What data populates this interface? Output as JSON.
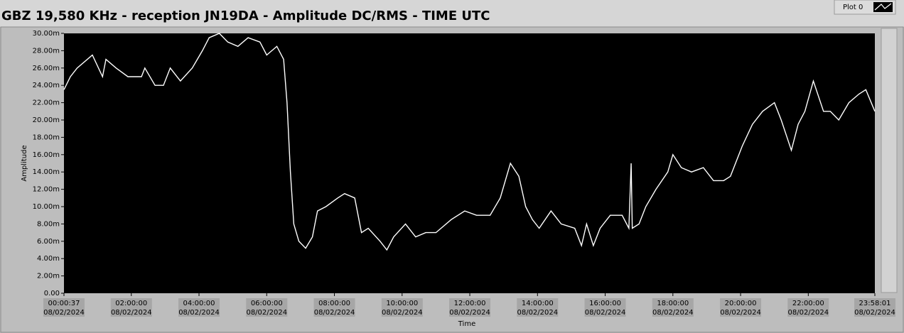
{
  "chart_data": {
    "type": "line",
    "title": "GBZ  19,580 KHz - reception JN19DA -  Amplitude DC/RMS   - TIME UTC",
    "x_label": "Time",
    "y_label": "Amplitude",
    "legend": "top-right",
    "background": "#000000",
    "x": [
      "08/02/2024 00:00:37",
      "08/02/2024 00:12:00",
      "08/02/2024 00:24:00",
      "08/02/2024 00:51:00",
      "08/02/2024 01:09:00",
      "08/02/2024 01:15:00",
      "08/02/2024 01:33:00",
      "08/02/2024 01:54:00",
      "08/02/2024 02:18:00",
      "08/02/2024 02:24:00",
      "08/02/2024 02:42:00",
      "08/02/2024 02:57:00",
      "08/02/2024 03:09:00",
      "08/02/2024 03:27:00",
      "08/02/2024 03:48:00",
      "08/02/2024 04:06:00",
      "08/02/2024 04:18:00",
      "08/02/2024 04:36:00",
      "08/02/2024 04:51:00",
      "08/02/2024 05:09:00",
      "08/02/2024 05:27:00",
      "08/02/2024 05:48:00",
      "08/02/2024 06:00:00",
      "08/02/2024 06:18:00",
      "08/02/2024 06:30:00",
      "08/02/2024 06:36:00",
      "08/02/2024 06:42:00",
      "08/02/2024 06:48:00",
      "08/02/2024 06:57:00",
      "08/02/2024 07:09:00",
      "08/02/2024 07:21:00",
      "08/02/2024 07:30:00",
      "08/02/2024 07:45:00",
      "08/02/2024 08:06:00",
      "08/02/2024 08:18:00",
      "08/02/2024 08:36:00",
      "08/02/2024 08:48:00",
      "08/02/2024 09:00:00",
      "08/02/2024 09:21:00",
      "08/02/2024 09:33:00",
      "08/02/2024 09:45:00",
      "08/02/2024 10:06:00",
      "08/02/2024 10:24:00",
      "08/02/2024 10:42:00",
      "08/02/2024 11:00:00",
      "08/02/2024 11:27:00",
      "08/02/2024 11:51:00",
      "08/02/2024 12:12:00",
      "08/02/2024 12:36:00",
      "08/02/2024 12:54:00",
      "08/02/2024 13:12:00",
      "08/02/2024 13:27:00",
      "08/02/2024 13:39:00",
      "08/02/2024 13:51:00",
      "08/02/2024 14:03:00",
      "08/02/2024 14:24:00",
      "08/02/2024 14:42:00",
      "08/02/2024 15:06:00",
      "08/02/2024 15:18:00",
      "08/02/2024 15:27:00",
      "08/02/2024 15:39:00",
      "08/02/2024 15:51:00",
      "08/02/2024 16:09:00",
      "08/02/2024 16:30:00",
      "08/02/2024 16:42:00",
      "08/02/2024 16:46:00",
      "08/02/2024 16:48:00",
      "08/02/2024 17:00:00",
      "08/02/2024 17:12:00",
      "08/02/2024 17:30:00",
      "08/02/2024 17:51:00",
      "08/02/2024 18:00:00",
      "08/02/2024 18:15:00",
      "08/02/2024 18:33:00",
      "08/02/2024 18:54:00",
      "08/02/2024 19:12:00",
      "08/02/2024 19:30:00",
      "08/02/2024 19:42:00",
      "08/02/2024 20:03:00",
      "08/02/2024 20:21:00",
      "08/02/2024 20:39:00",
      "08/02/2024 21:00:00",
      "08/02/2024 21:12:00",
      "08/02/2024 21:30:00",
      "08/02/2024 21:42:00",
      "08/02/2024 21:54:00",
      "08/02/2024 22:09:00",
      "08/02/2024 22:27:00",
      "08/02/2024 22:39:00",
      "08/02/2024 22:54:00",
      "08/02/2024 23:12:00",
      "08/02/2024 23:30:00",
      "08/02/2024 23:42:00",
      "08/02/2024 23:58:01"
    ],
    "series": [
      {
        "name": "Plot 0",
        "color": "#ffffff",
        "values": [
          23.5,
          25,
          26,
          27.5,
          25,
          27,
          26,
          25,
          25,
          26,
          24,
          24,
          26,
          24.5,
          26,
          28,
          29.5,
          30,
          29,
          28.5,
          29.5,
          29,
          27.5,
          28.5,
          27,
          22,
          14,
          8,
          6,
          5.2,
          6.5,
          9.5,
          10,
          11,
          11.5,
          11,
          7,
          7.5,
          6,
          5,
          6.5,
          8,
          6.5,
          7,
          7,
          8.5,
          9.5,
          9,
          9,
          11,
          15,
          13.5,
          10,
          8.5,
          7.5,
          9.5,
          8,
          7.5,
          5.5,
          8,
          5.5,
          7.5,
          9,
          9,
          7.5,
          15,
          7.5,
          8,
          10,
          12,
          14,
          16,
          14.5,
          14,
          14.5,
          13,
          13,
          13.5,
          17,
          19.5,
          21,
          22,
          20,
          16.5,
          19.5,
          21,
          24.5,
          21,
          21,
          20,
          22,
          23,
          23.5,
          21
        ]
      }
    ],
    "xlim": [
      "08/02/2024 00:00:37",
      "08/02/2024 23:58:01"
    ],
    "xticks": [
      {
        "value": "08/02/2024 00:00:37",
        "label": [
          "00:00:37",
          "08/02/2024"
        ]
      },
      {
        "value": "08/02/2024 02:00:00",
        "label": [
          "02:00:00",
          "08/02/2024"
        ]
      },
      {
        "value": "08/02/2024 04:00:00",
        "label": [
          "04:00:00",
          "08/02/2024"
        ]
      },
      {
        "value": "08/02/2024 06:00:00",
        "label": [
          "06:00:00",
          "08/02/2024"
        ]
      },
      {
        "value": "08/02/2024 08:00:00",
        "label": [
          "08:00:00",
          "08/02/2024"
        ]
      },
      {
        "value": "08/02/2024 10:00:00",
        "label": [
          "10:00:00",
          "08/02/2024"
        ]
      },
      {
        "value": "08/02/2024 12:00:00",
        "label": [
          "12:00:00",
          "08/02/2024"
        ]
      },
      {
        "value": "08/02/2024 14:00:00",
        "label": [
          "14:00:00",
          "08/02/2024"
        ]
      },
      {
        "value": "08/02/2024 16:00:00",
        "label": [
          "16:00:00",
          "08/02/2024"
        ]
      },
      {
        "value": "08/02/2024 18:00:00",
        "label": [
          "18:00:00",
          "08/02/2024"
        ]
      },
      {
        "value": "08/02/2024 20:00:00",
        "label": [
          "20:00:00",
          "08/02/2024"
        ]
      },
      {
        "value": "08/02/2024 22:00:00",
        "label": [
          "22:00:00",
          "08/02/2024"
        ]
      },
      {
        "value": "08/02/2024 23:58:01",
        "label": [
          "23:58:01",
          "08/02/2024"
        ]
      }
    ],
    "ylim": [
      0,
      30
    ],
    "yticks": [
      {
        "value": 0,
        "label": "0.00"
      },
      {
        "value": 2,
        "label": "2.00m"
      },
      {
        "value": 4,
        "label": "4.00m"
      },
      {
        "value": 6,
        "label": "6.00m"
      },
      {
        "value": 8,
        "label": "8.00m"
      },
      {
        "value": 10,
        "label": "10.00m"
      },
      {
        "value": 12,
        "label": "12.00m"
      },
      {
        "value": 14,
        "label": "14.00m"
      },
      {
        "value": 16,
        "label": "16.00m"
      },
      {
        "value": 18,
        "label": "18.00m"
      },
      {
        "value": 20,
        "label": "20.00m"
      },
      {
        "value": 22,
        "label": "22.00m"
      },
      {
        "value": 24,
        "label": "24.00m"
      },
      {
        "value": 26,
        "label": "26.00m"
      },
      {
        "value": 28,
        "label": "28.00m"
      },
      {
        "value": 30,
        "label": "30.00m"
      }
    ]
  }
}
